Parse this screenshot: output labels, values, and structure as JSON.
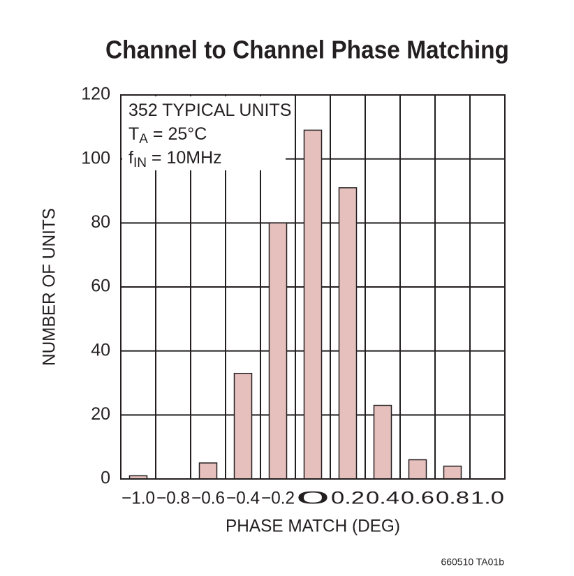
{
  "chart_data": {
    "type": "bar",
    "title": "Channel to Channel Phase Matching",
    "x_label": "PHASE MATCH (DEG)",
    "y_label": "NUMBER OF UNITS",
    "categories": [
      "−1.0",
      "−0.8",
      "−0.6",
      "−0.4",
      "−0.2",
      "0",
      "0.2",
      "0.4",
      "0.6",
      "0.8",
      "1.0"
    ],
    "values": [
      1,
      0,
      5,
      33,
      80,
      109,
      91,
      23,
      6,
      4,
      0
    ],
    "color": "#e6c0bd",
    "ylim": [
      0,
      120
    ],
    "yticks": [
      0,
      20,
      40,
      60,
      80,
      100,
      120
    ],
    "grid": true,
    "annotation": [
      {
        "text": "352 TYPICAL UNITS"
      },
      {
        "text": "T",
        "subscript": "A",
        "suffix": " = 25°C"
      },
      {
        "text": "f",
        "subscript": "IN",
        "suffix": " = 10MHz"
      }
    ],
    "footnote": "660510 TA01b"
  }
}
